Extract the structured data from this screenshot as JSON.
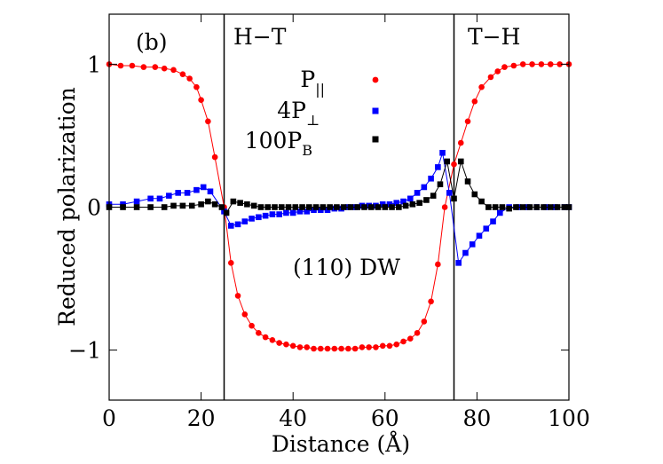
{
  "chart_data": {
    "type": "line",
    "panel_label": "(b)",
    "xlabel": "Distance (Å)",
    "ylabel": "Reduced polarization",
    "xlim": [
      0,
      100
    ],
    "ylim": [
      -1.35,
      1.35
    ],
    "xticks": [
      0,
      20,
      40,
      60,
      80,
      100
    ],
    "xtick_labels": [
      "0",
      "20",
      "40",
      "60",
      "80",
      "100"
    ],
    "yticks": [
      -1,
      0,
      1
    ],
    "ytick_labels": [
      "−1",
      "0",
      "1"
    ],
    "vertical_lines": [
      25,
      75
    ],
    "annotations": {
      "left_wall": "H−T",
      "right_wall": "T−H",
      "wall_type": "(110) DW"
    },
    "legend": [
      {
        "base": "P",
        "sub": "||",
        "sup": ""
      },
      {
        "base": "4P",
        "sub": "",
        "sup": "⊥"
      },
      {
        "base": "100P",
        "sub": "B",
        "sup": ""
      }
    ],
    "series": [
      {
        "name": "P∥",
        "color": "#ff0000",
        "marker": "circle",
        "x": [
          0,
          2.5,
          5,
          7.5,
          10,
          12,
          14,
          16,
          17.5,
          19,
          20,
          21.5,
          23,
          25,
          26.5,
          28,
          29.5,
          31,
          32.5,
          34,
          35.5,
          37,
          38.5,
          40,
          41.5,
          43,
          44.5,
          46,
          47.5,
          49,
          50.5,
          52,
          53.5,
          55,
          56.5,
          58,
          59.5,
          61,
          62.5,
          64,
          65.5,
          67,
          68.5,
          70,
          71.5,
          73,
          75,
          76.5,
          78,
          79.5,
          81,
          83,
          84.5,
          86,
          88,
          90,
          92,
          94,
          96,
          98,
          100
        ],
        "y": [
          1.0,
          0.99,
          0.99,
          0.98,
          0.98,
          0.97,
          0.96,
          0.93,
          0.9,
          0.84,
          0.75,
          0.6,
          0.35,
          0.0,
          -0.39,
          -0.62,
          -0.75,
          -0.83,
          -0.88,
          -0.91,
          -0.93,
          -0.95,
          -0.96,
          -0.97,
          -0.98,
          -0.98,
          -0.99,
          -0.99,
          -0.99,
          -0.99,
          -0.99,
          -0.99,
          -0.99,
          -0.98,
          -0.98,
          -0.98,
          -0.97,
          -0.97,
          -0.96,
          -0.94,
          -0.92,
          -0.88,
          -0.8,
          -0.66,
          -0.4,
          0.0,
          0.3,
          0.45,
          0.6,
          0.74,
          0.84,
          0.91,
          0.95,
          0.98,
          0.99,
          1.0,
          1.0,
          1.0,
          1.0,
          1.0,
          1.0
        ]
      },
      {
        "name": "4P⊥",
        "color": "#0000ff",
        "marker": "square",
        "x": [
          0,
          3,
          6,
          9,
          11,
          13,
          15,
          17,
          19,
          20.5,
          22,
          25,
          26.5,
          28,
          29.5,
          31,
          32.5,
          34,
          35.5,
          37,
          38.5,
          40,
          41.5,
          43,
          44.5,
          46,
          47.5,
          49,
          50.5,
          52,
          53.5,
          55,
          56.5,
          58,
          59.5,
          61,
          62.5,
          64,
          65.5,
          67,
          68.5,
          70,
          71.5,
          72.5,
          74,
          76,
          77.5,
          79,
          80.5,
          82,
          83.5,
          85,
          87,
          89,
          91,
          93,
          95,
          97,
          99,
          100
        ],
        "y": [
          0.02,
          0.02,
          0.04,
          0.06,
          0.06,
          0.08,
          0.1,
          0.1,
          0.12,
          0.14,
          0.11,
          -0.03,
          -0.13,
          -0.12,
          -0.1,
          -0.08,
          -0.07,
          -0.06,
          -0.05,
          -0.05,
          -0.04,
          -0.04,
          -0.03,
          -0.03,
          -0.02,
          -0.02,
          -0.02,
          -0.01,
          -0.01,
          0.0,
          0.0,
          0.01,
          0.01,
          0.01,
          0.02,
          0.02,
          0.03,
          0.04,
          0.06,
          0.1,
          0.14,
          0.2,
          0.28,
          0.38,
          0.1,
          -0.39,
          -0.32,
          -0.26,
          -0.2,
          -0.15,
          -0.1,
          -0.04,
          0.0,
          0.0,
          0.0,
          0.0,
          0.0,
          0.0,
          0.0,
          0.0
        ]
      },
      {
        "name": "100PB",
        "color": "#000000",
        "marker": "square",
        "x": [
          0,
          3,
          6,
          9,
          12,
          14,
          16,
          18,
          20,
          21.5,
          23,
          24.5,
          25.5,
          27,
          28.5,
          30,
          31.5,
          33,
          34.5,
          36,
          37.5,
          39,
          40.5,
          42,
          43.5,
          45,
          46.5,
          48,
          49.5,
          51,
          52.5,
          54,
          55.5,
          57,
          58.5,
          60,
          61.5,
          63,
          64.5,
          66,
          67.5,
          69,
          70.5,
          72,
          73.5,
          75,
          76.5,
          78,
          79.5,
          81,
          82.5,
          84,
          85.5,
          87,
          88.5,
          90,
          91.5,
          93,
          94.5,
          96,
          97.5,
          99,
          100
        ],
        "y": [
          0.0,
          0.0,
          0.0,
          0.0,
          0.0,
          0.01,
          0.01,
          0.01,
          0.02,
          0.04,
          0.02,
          0.0,
          -0.04,
          0.04,
          0.03,
          0.02,
          0.01,
          0.0,
          0.0,
          0.0,
          0.0,
          0.0,
          0.0,
          0.0,
          0.0,
          0.0,
          0.0,
          0.0,
          0.0,
          0.0,
          0.0,
          0.0,
          0.0,
          0.0,
          0.0,
          0.0,
          0.0,
          0.0,
          0.01,
          0.02,
          0.03,
          0.05,
          0.08,
          0.16,
          0.32,
          0.06,
          0.32,
          0.18,
          0.09,
          0.04,
          0.0,
          0.0,
          0.0,
          -0.01,
          0.0,
          0.0,
          0.0,
          0.0,
          0.0,
          0.0,
          0.0,
          0.0,
          0.0
        ]
      }
    ]
  }
}
